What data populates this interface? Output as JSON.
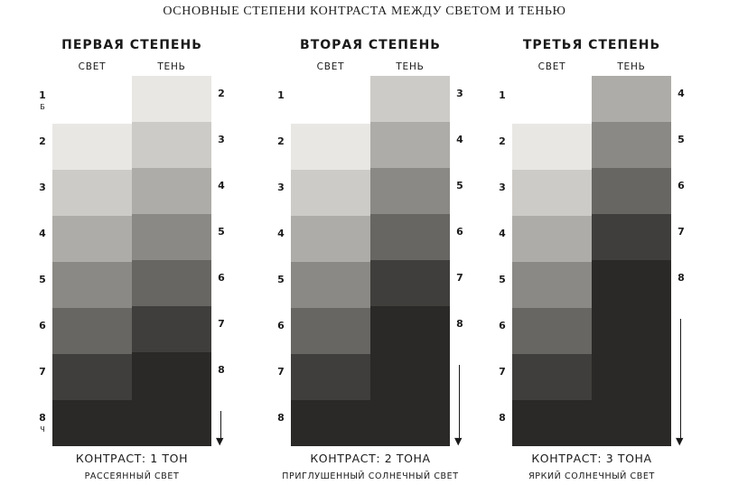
{
  "title": "ОСНОВНЫЕ СТЕПЕНИ КОНТРАСТА МЕЖДУ СВЕТОМ И ТЕНЬЮ",
  "tones": {
    "1": "#ffffff",
    "2": "#e8e7e4",
    "3": "#cdcbc7",
    "4": "#aeaca8",
    "5": "#8b8985",
    "6": "#686663",
    "7": "#3f3e3c",
    "8": "#2a2928"
  },
  "panels": [
    {
      "title": "ПЕРВАЯ СТЕПЕНЬ",
      "light_label": "СВЕТ",
      "shadow_label": "ТЕНЬ",
      "light_sub_top": "Б",
      "light_sub_bottom": "Ч",
      "light_tones": [
        "1",
        "2",
        "3",
        "4",
        "5",
        "6",
        "7",
        "8"
      ],
      "shadow_tones": [
        "2",
        "3",
        "4",
        "5",
        "6",
        "7",
        "8"
      ],
      "contrast": "КОНТРАСТ: 1 ТОН",
      "caption": "РАССЕЯННЫЙ СВЕТ"
    },
    {
      "title": "ВТОРАЯ СТЕПЕНЬ",
      "light_label": "СВЕТ",
      "shadow_label": "ТЕНЬ",
      "light_tones": [
        "1",
        "2",
        "3",
        "4",
        "5",
        "6",
        "7",
        "8"
      ],
      "shadow_tones": [
        "3",
        "4",
        "5",
        "6",
        "7",
        "8"
      ],
      "contrast": "КОНТРАСТ: 2 ТОНА",
      "caption": "ПРИГЛУШЕННЫЙ СОЛНЕЧНЫЙ СВЕТ"
    },
    {
      "title": "ТРЕТЬЯ СТЕПЕНЬ",
      "light_label": "СВЕТ",
      "shadow_label": "ТЕНЬ",
      "light_tones": [
        "1",
        "2",
        "3",
        "4",
        "5",
        "6",
        "7",
        "8"
      ],
      "shadow_tones": [
        "4",
        "5",
        "6",
        "7",
        "8"
      ],
      "contrast": "КОНТРАСТ: 3 ТОНА",
      "caption": "ЯРКИЙ СОЛНЕЧНЫЙ СВЕТ"
    }
  ]
}
